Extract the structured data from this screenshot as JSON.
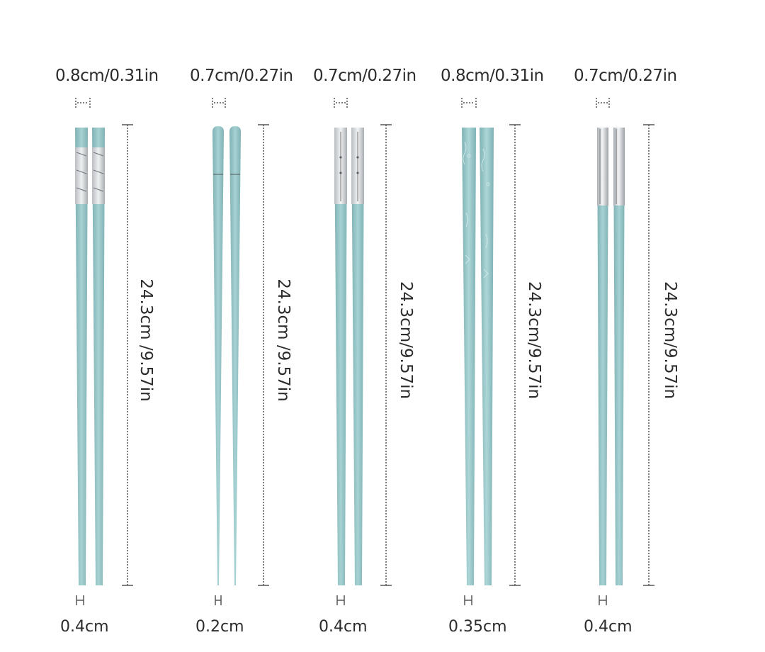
{
  "sets": [
    {
      "name": "set-1",
      "top_width": "0.8cm/0.31in",
      "length": "24.3cm /9.57in",
      "tip_width": "0.4cm",
      "style": "silver-band",
      "stick_color": "#8fbfc1"
    },
    {
      "name": "set-2",
      "top_width": "0.7cm/0.27in",
      "length": "24.3cm /9.57in",
      "tip_width": "0.2cm",
      "style": "plain-rounded",
      "stick_color": "#8fbfc1"
    },
    {
      "name": "set-3",
      "top_width": "0.7cm/0.27in",
      "length": "24.3cm/9.57in",
      "tip_width": "0.4cm",
      "style": "silver-cap",
      "stick_color": "#8fbfc1"
    },
    {
      "name": "set-4",
      "top_width": "0.8cm/0.31in",
      "length": "24.3cm/9.57in",
      "tip_width": "0.35cm",
      "style": "pattern",
      "stick_color": "#8fbfc1"
    },
    {
      "name": "set-5",
      "top_width": "0.7cm/0.27in",
      "length": "24.3cm/9.57in",
      "tip_width": "0.4cm",
      "style": "silver-cap-thin",
      "stick_color": "#8fbfc1"
    }
  ]
}
